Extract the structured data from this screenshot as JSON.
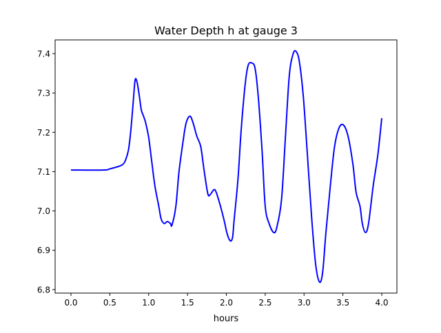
{
  "chart_data": {
    "type": "line",
    "title": "Water Depth h at gauge 3",
    "xlabel": "hours",
    "ylabel": "",
    "xlim": [
      -0.204,
      4.195
    ],
    "ylim": [
      6.791,
      7.435
    ],
    "xticks": [
      0.0,
      0.5,
      1.0,
      1.5,
      2.0,
      2.5,
      3.0,
      3.5,
      4.0
    ],
    "xtick_labels": [
      "0.0",
      "0.5",
      "1.0",
      "1.5",
      "2.0",
      "2.5",
      "3.0",
      "3.5",
      "4.0"
    ],
    "yticks": [
      6.8,
      6.9,
      7.0,
      7.1,
      7.2,
      7.3,
      7.4
    ],
    "ytick_labels": [
      "6.8",
      "6.9",
      "7.0",
      "7.1",
      "7.2",
      "7.3",
      "7.4"
    ],
    "grid": false,
    "series": [
      {
        "name": "h",
        "color": "#0000ff",
        "x": [
          0,
          0.42,
          0.5,
          0.61,
          0.665,
          0.7,
          0.74,
          0.77,
          0.8,
          0.825,
          0.85,
          0.88,
          0.905,
          0.93,
          0.96,
          1.0,
          1.04,
          1.08,
          1.13,
          1.16,
          1.2,
          1.24,
          1.28,
          1.3,
          1.35,
          1.39,
          1.44,
          1.48,
          1.53,
          1.57,
          1.62,
          1.67,
          1.71,
          1.76,
          1.79,
          1.84,
          1.87,
          1.92,
          1.97,
          2.01,
          2.05,
          2.08,
          2.1,
          2.15,
          2.19,
          2.24,
          2.28,
          2.33,
          2.37,
          2.41,
          2.46,
          2.5,
          2.55,
          2.61,
          2.65,
          2.71,
          2.76,
          2.81,
          2.86,
          2.9,
          2.94,
          2.99,
          3.04,
          3.1,
          3.15,
          3.2,
          3.24,
          3.28,
          3.33,
          3.39,
          3.45,
          3.51,
          3.57,
          3.63,
          3.67,
          3.72,
          3.75,
          3.79,
          3.83,
          3.89,
          3.95,
          4.0
        ],
        "y": [
          7.104,
          7.104,
          7.107,
          7.113,
          7.118,
          7.128,
          7.155,
          7.204,
          7.274,
          7.332,
          7.328,
          7.292,
          7.257,
          7.243,
          7.225,
          7.187,
          7.125,
          7.064,
          7.012,
          6.98,
          6.968,
          6.973,
          6.968,
          6.964,
          7.012,
          7.099,
          7.173,
          7.222,
          7.241,
          7.225,
          7.19,
          7.164,
          7.108,
          7.045,
          7.041,
          7.054,
          7.047,
          7.015,
          6.977,
          6.942,
          6.924,
          6.933,
          6.977,
          7.082,
          7.204,
          7.318,
          7.37,
          7.376,
          7.362,
          7.292,
          7.152,
          7.012,
          6.968,
          6.945,
          6.959,
          7.029,
          7.187,
          7.344,
          7.4,
          7.405,
          7.379,
          7.292,
          7.152,
          6.977,
          6.863,
          6.819,
          6.845,
          6.942,
          7.047,
          7.16,
          7.211,
          7.218,
          7.187,
          7.117,
          7.047,
          7.012,
          6.968,
          6.945,
          6.968,
          7.064,
          7.143,
          7.236
        ]
      }
    ]
  }
}
